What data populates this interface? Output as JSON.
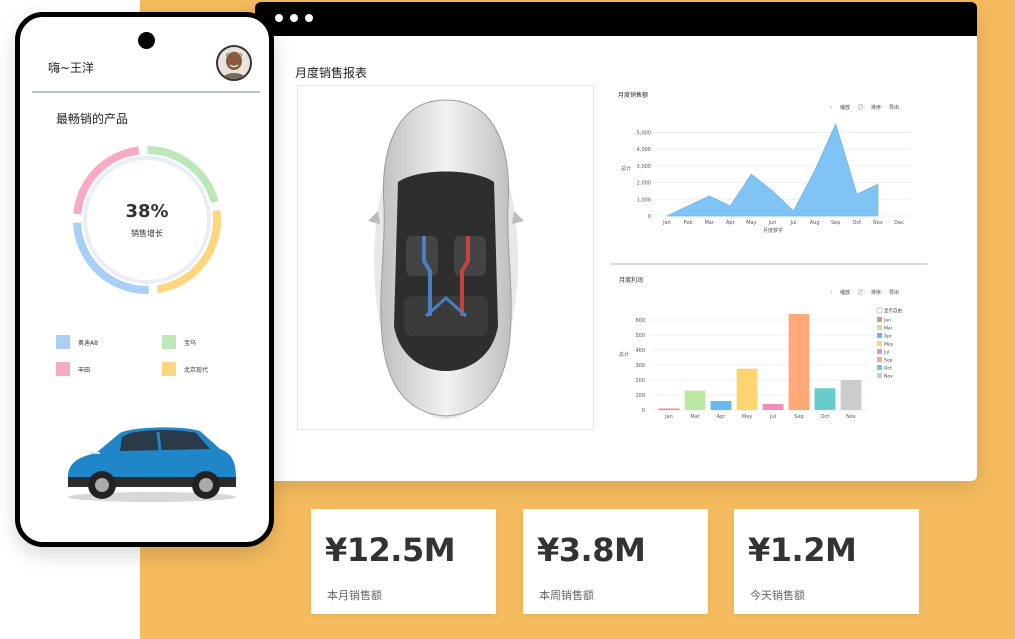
{
  "phone": {
    "greeting": "嗨~王洋",
    "best_products_title": "最畅销的产品",
    "growth_percent": "38%",
    "growth_label": "销售增长",
    "legend": [
      {
        "label": "奥迪A8",
        "color": "#a8cff5"
      },
      {
        "label": "宝马",
        "color": "#bde8b9"
      },
      {
        "label": "丰田",
        "color": "#f7a9c6"
      },
      {
        "label": "北京现代",
        "color": "#fdd680"
      }
    ],
    "donut_segments": [
      {
        "name": "宝马",
        "color": "#bde8b9",
        "fraction": 0.22
      },
      {
        "name": "北京现代",
        "color": "#fdd680",
        "fraction": 0.26
      },
      {
        "name": "奥迪A8",
        "color": "#a8cff5",
        "fraction": 0.26
      },
      {
        "name": "丰田",
        "color": "#f7a9c6",
        "fraction": 0.23
      }
    ]
  },
  "report": {
    "title": "月度销售报表"
  },
  "area_panel": {
    "title": "月度销售额",
    "toolbar": [
      "›",
      "缩放",
      "〼",
      "排序",
      "导出"
    ],
    "ylabel": "总计",
    "xlabel": "月度数字"
  },
  "bar_panel": {
    "title": "月度利润",
    "toolbar": [
      "›",
      "缩放",
      "〼",
      "排序",
      "导出"
    ],
    "ylabel": "总计",
    "legend_header": "显示自由"
  },
  "chart_data": [
    {
      "type": "area",
      "title": "",
      "categories": [
        "Jan",
        "Feb",
        "Mar",
        "Apr",
        "May",
        "Jun",
        "Jul",
        "Aug",
        "Sep",
        "Oct",
        "Nov",
        "Dec"
      ],
      "series": [
        {
          "name": "",
          "values": [
            0,
            600,
            1200,
            600,
            2500,
            1500,
            300,
            2700,
            5500,
            1300,
            1900,
            null
          ],
          "color": "#7fc4f5"
        }
      ],
      "yticks": [
        "0",
        "1,000",
        "2,000",
        "3,000",
        "4,000",
        "5,000"
      ],
      "ylim": [
        0,
        5500
      ],
      "xlabel": "月度数字",
      "ylabel": "总计",
      "grid": true
    },
    {
      "type": "bar",
      "title": "",
      "categories": [
        "Jan",
        "Mar",
        "Apr",
        "May",
        "Jul",
        "Sep",
        "Oct",
        "Nov"
      ],
      "values": [
        10,
        130,
        60,
        275,
        40,
        640,
        145,
        200
      ],
      "colors": [
        "#f28b82",
        "#bde8a1",
        "#6ab8f0",
        "#fdd46f",
        "#f48cb4",
        "#ffa878",
        "#66cccc",
        "#cccccc"
      ],
      "yticks": [
        "0",
        "100",
        "200",
        "300",
        "400",
        "500",
        "600"
      ],
      "ylim": [
        0,
        680
      ],
      "ylabel": "总计",
      "legend_position": "right",
      "grid": true
    }
  ],
  "stats": [
    {
      "value": "¥12.5M",
      "label": "本月销售额"
    },
    {
      "value": "¥3.8M",
      "label": "本周销售额"
    },
    {
      "value": "¥1.2M",
      "label": "今天销售额"
    }
  ]
}
